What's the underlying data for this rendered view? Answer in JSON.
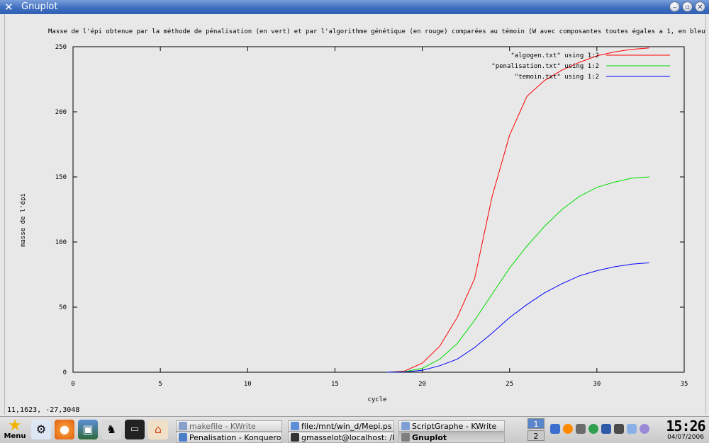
{
  "window": {
    "title": "Gnuplot",
    "icon": "x-logo-icon"
  },
  "chart_data": {
    "type": "line",
    "title": "Masse de l'épi obtenue par la méthode de pénalisation (en vert) et par l'algorithme génétique (en rouge) comparées au témoin (W avec composantes toutes égales a 1, en bleu)",
    "xlabel": "cycle",
    "ylabel": "masse de l'épi",
    "xlim": [
      0,
      35
    ],
    "ylim": [
      0,
      250
    ],
    "xticks": [
      0,
      5,
      10,
      15,
      20,
      25,
      30,
      35
    ],
    "yticks": [
      0,
      50,
      100,
      150,
      200,
      250
    ],
    "legend": "top-right",
    "grid": false,
    "x": [
      18,
      19,
      20,
      21,
      22,
      23,
      24,
      25,
      26,
      27,
      28,
      29,
      30,
      31,
      32,
      33
    ],
    "series": [
      {
        "name": "\"algogen.txt\" using 1:2",
        "color": "#ff0000",
        "values": [
          0,
          1,
          7,
          20,
          42,
          72,
          135,
          182,
          212,
          224,
          232,
          238,
          243,
          246,
          248,
          249
        ]
      },
      {
        "name": "\"penalisation.txt\" using 1:2",
        "color": "#00dd00",
        "values": [
          0,
          0.5,
          3,
          10,
          22,
          40,
          60,
          80,
          97,
          112,
          125,
          135,
          142,
          146,
          149,
          150
        ]
      },
      {
        "name": "\"temoin.txt\" using 1:2",
        "color": "#0000ff",
        "values": [
          0,
          0.2,
          1.5,
          5,
          10,
          19,
          30,
          42,
          52,
          61,
          68,
          74,
          78,
          81,
          83,
          84
        ]
      }
    ]
  },
  "status": {
    "coords": "11,1623, -27,3048"
  },
  "taskbar": {
    "menu_label": "Menu",
    "tasks": [
      {
        "label": "makefile - KWrite",
        "state": "dim"
      },
      {
        "label": "file:/mnt/win_d/Mepi.ps - K",
        "state": "normal"
      },
      {
        "label": "ScriptGraphe - KWrite",
        "state": "normal"
      },
      {
        "label": "Penalisation - Konqueror",
        "state": "normal"
      },
      {
        "label": "gmasselot@localhost: /hor",
        "state": "normal"
      },
      {
        "label": "Gnuplot",
        "state": "active"
      }
    ],
    "desktops": [
      "1",
      "2"
    ],
    "clock_time": "15:26",
    "clock_date": "04/07/2006"
  }
}
